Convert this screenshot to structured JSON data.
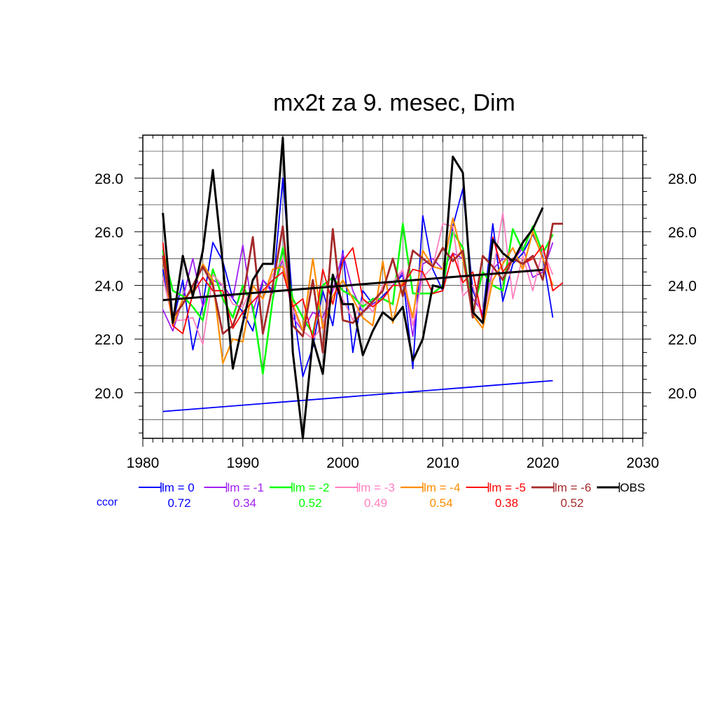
{
  "chart_data": {
    "type": "line",
    "title": "mx2t za 9. mesec, Dim",
    "xlabel": "",
    "ylabel": "",
    "xlim": [
      1980,
      2030
    ],
    "ylim": [
      18.3,
      29.6
    ],
    "x_ticks": [
      1980,
      1990,
      2000,
      2010,
      2020,
      2030
    ],
    "y_ticks": [
      "20.0",
      "22.0",
      "24.0",
      "26.0",
      "28.0"
    ],
    "grid": true,
    "legend_position": "bottom",
    "ccor_label": "ccor",
    "series": [
      {
        "name": "lm = 0",
        "color": "#0000ff",
        "ccor": "0.72",
        "width": 1.8,
        "x": [
          1982,
          1983,
          1984,
          1985,
          1986,
          1987,
          1988,
          1989,
          1990,
          1991,
          1992,
          1993,
          1994,
          1995,
          1996,
          1997,
          1998,
          1999,
          2000,
          2001,
          2002,
          2003,
          2004,
          2005,
          2006,
          2007,
          2008,
          2009,
          2010,
          2011,
          2012,
          2013,
          2014,
          2015,
          2016,
          2017,
          2018,
          2019,
          2020,
          2021
        ],
        "y": [
          24.6,
          22.6,
          24.2,
          21.6,
          23.3,
          25.6,
          24.9,
          23.5,
          23.0,
          22.3,
          24.2,
          23.8,
          28.0,
          23.3,
          20.6,
          21.7,
          23.8,
          22.5,
          25.3,
          21.5,
          23.8,
          23.3,
          23.6,
          24.0,
          24.4,
          20.9,
          26.6,
          24.6,
          23.8,
          26.2,
          27.6,
          23.8,
          22.9,
          26.3,
          23.4,
          24.8,
          25.2,
          25.9,
          25.1,
          22.8
        ]
      },
      {
        "name": "lm = -1",
        "color": "#a020f0",
        "ccor": "0.34",
        "width": 1.8,
        "x": [
          1982,
          1983,
          1984,
          1985,
          1986,
          1987,
          1988,
          1989,
          1990,
          1991,
          1992,
          1993,
          1994,
          1995,
          1996,
          1997,
          1998,
          1999,
          2000,
          2001,
          2002,
          2003,
          2004,
          2005,
          2006,
          2007,
          2008,
          2009,
          2010,
          2011,
          2012,
          2013,
          2014,
          2015,
          2016,
          2017,
          2018,
          2019,
          2020,
          2021
        ],
        "y": [
          23.1,
          22.3,
          23.5,
          25.0,
          23.2,
          24.2,
          24.0,
          23.5,
          25.5,
          23.0,
          24.2,
          23.7,
          25.0,
          22.8,
          22.3,
          23.0,
          22.8,
          23.8,
          25.2,
          23.8,
          23.0,
          23.3,
          23.5,
          24.0,
          24.5,
          22.1,
          24.8,
          25.0,
          24.6,
          25.2,
          25.0,
          23.5,
          23.0,
          24.6,
          25.0,
          24.9,
          25.4,
          24.3,
          24.5,
          25.6
        ]
      },
      {
        "name": "lm = -2",
        "color": "#00ff00",
        "ccor": "0.52",
        "width": 2.5,
        "x": [
          1982,
          1983,
          1984,
          1985,
          1986,
          1987,
          1988,
          1989,
          1990,
          1991,
          1992,
          1993,
          1994,
          1995,
          1996,
          1997,
          1998,
          1999,
          2000,
          2001,
          2002,
          2003,
          2004,
          2005,
          2006,
          2007,
          2008,
          2009,
          2010,
          2011,
          2012,
          2013,
          2014,
          2015,
          2016,
          2017,
          2018,
          2019,
          2020,
          2021
        ],
        "y": [
          25.3,
          23.8,
          23.6,
          23.2,
          22.7,
          24.6,
          23.5,
          22.8,
          24.0,
          23.2,
          20.7,
          23.5,
          25.4,
          23.5,
          22.8,
          22.2,
          24.0,
          24.3,
          23.8,
          23.6,
          23.2,
          23.5,
          23.5,
          23.3,
          26.3,
          23.7,
          23.7,
          23.7,
          24.0,
          26.0,
          25.4,
          23.0,
          24.5,
          24.0,
          23.8,
          26.1,
          25.3,
          26.2,
          25.2,
          25.9
        ]
      },
      {
        "name": "lm = -3",
        "color": "#ff7fbf",
        "ccor": "0.49",
        "width": 1.8,
        "x": [
          1982,
          1983,
          1984,
          1985,
          1986,
          1987,
          1988,
          1989,
          1990,
          1991,
          1992,
          1993,
          1994,
          1995,
          1996,
          1997,
          1998,
          1999,
          2000,
          2001,
          2002,
          2003,
          2004,
          2005,
          2006,
          2007,
          2008,
          2009,
          2010,
          2011,
          2012,
          2013,
          2014,
          2015,
          2016,
          2017,
          2018,
          2019,
          2020,
          2021
        ],
        "y": [
          24.3,
          22.7,
          22.7,
          22.8,
          21.8,
          24.4,
          24.0,
          23.3,
          23.2,
          24.0,
          23.5,
          24.4,
          25.0,
          23.1,
          22.3,
          22.0,
          22.5,
          24.0,
          23.5,
          22.7,
          23.5,
          23.0,
          24.0,
          24.1,
          24.6,
          22.5,
          24.3,
          24.7,
          26.3,
          26.2,
          23.6,
          24.0,
          22.7,
          24.5,
          26.7,
          23.5,
          25.1,
          23.8,
          25.3,
          24.4
        ]
      },
      {
        "name": "lm = -4",
        "color": "#ff8c00",
        "ccor": "0.54",
        "width": 2.2,
        "x": [
          1982,
          1983,
          1984,
          1985,
          1986,
          1987,
          1988,
          1989,
          1990,
          1991,
          1992,
          1993,
          1994,
          1995,
          1996,
          1997,
          1998,
          1999,
          2000,
          2001,
          2002,
          2003,
          2004,
          2005,
          2006,
          2007,
          2008,
          2009,
          2010,
          2011,
          2012,
          2013,
          2014,
          2015,
          2016,
          2017,
          2018,
          2019,
          2020,
          2021
        ],
        "y": [
          25.0,
          22.5,
          23.5,
          23.8,
          24.8,
          24.2,
          21.1,
          22.0,
          21.9,
          24.0,
          23.5,
          24.6,
          24.7,
          23.3,
          22.3,
          25.0,
          22.4,
          23.6,
          24.2,
          23.5,
          22.8,
          22.5,
          24.9,
          22.6,
          24.2,
          22.8,
          25.3,
          24.7,
          24.6,
          26.5,
          25.0,
          22.9,
          22.4,
          24.2,
          24.8,
          25.4,
          24.6,
          26.0,
          25.0,
          24.0
        ]
      },
      {
        "name": "lm = -5",
        "color": "#ff0000",
        "ccor": "0.38",
        "width": 1.8,
        "x": [
          1982,
          1983,
          1984,
          1985,
          1986,
          1987,
          1988,
          1989,
          1990,
          1991,
          1992,
          1993,
          1994,
          1995,
          1996,
          1997,
          1998,
          1999,
          2000,
          2001,
          2002,
          2003,
          2004,
          2005,
          2006,
          2007,
          2008,
          2009,
          2010,
          2011,
          2012,
          2013,
          2014,
          2015,
          2016,
          2017,
          2018,
          2019,
          2020,
          2021,
          2022
        ],
        "y": [
          25.6,
          22.5,
          22.2,
          23.7,
          24.3,
          23.8,
          23.8,
          22.4,
          23.0,
          23.4,
          23.8,
          24.2,
          24.5,
          23.2,
          23.5,
          22.0,
          24.6,
          23.3,
          24.9,
          25.4,
          23.5,
          23.2,
          23.5,
          24.0,
          24.0,
          24.6,
          24.5,
          23.7,
          23.8,
          25.2,
          24.1,
          24.5,
          22.7,
          25.8,
          24.5,
          25.0,
          24.8,
          25.0,
          25.5,
          23.8,
          24.1
        ]
      },
      {
        "name": "lm = -6",
        "color": "#a52a2a",
        "ccor": "0.52",
        "width": 2.8,
        "x": [
          1982,
          1983,
          1984,
          1985,
          1986,
          1987,
          1988,
          1989,
          1990,
          1991,
          1992,
          1993,
          1994,
          1995,
          1996,
          1997,
          1998,
          1999,
          2000,
          2001,
          2002,
          2003,
          2004,
          2005,
          2006,
          2007,
          2008,
          2009,
          2010,
          2011,
          2012,
          2013,
          2014,
          2015,
          2016,
          2017,
          2018,
          2019,
          2020,
          2021,
          2022
        ],
        "y": [
          25.1,
          22.8,
          23.3,
          24.0,
          24.7,
          24.0,
          22.2,
          22.5,
          23.5,
          25.8,
          22.2,
          24.0,
          26.2,
          22.5,
          22.1,
          24.2,
          21.5,
          26.1,
          22.7,
          22.6,
          23.0,
          23.4,
          23.8,
          25.0,
          23.6,
          25.3,
          25.0,
          24.7,
          25.4,
          24.9,
          25.3,
          22.8,
          25.1,
          24.7,
          24.2,
          25.0,
          24.8,
          25.1,
          24.2,
          26.3,
          26.3
        ]
      },
      {
        "name": "OBS",
        "color": "#000000",
        "ccor": "",
        "width": 3.0,
        "x": [
          1982,
          1983,
          1984,
          1985,
          1986,
          1987,
          1988,
          1989,
          1990,
          1991,
          1992,
          1993,
          1994,
          1995,
          1996,
          1997,
          1998,
          1999,
          2000,
          2001,
          2002,
          2003,
          2004,
          2005,
          2006,
          2007,
          2008,
          2009,
          2010,
          2011,
          2012,
          2013,
          2014,
          2015,
          2016,
          2017,
          2018,
          2019,
          2020
        ],
        "y": [
          26.7,
          22.6,
          25.1,
          23.6,
          25.3,
          28.3,
          24.8,
          20.9,
          22.6,
          24.2,
          24.8,
          24.8,
          29.5,
          21.5,
          18.3,
          22.0,
          20.7,
          24.4,
          23.3,
          23.3,
          21.4,
          22.3,
          23.0,
          22.7,
          23.2,
          21.2,
          22.0,
          24.0,
          23.9,
          28.8,
          28.2,
          23.0,
          22.6,
          25.7,
          25.2,
          24.9,
          25.6,
          26.1,
          26.9
        ]
      }
    ],
    "trend_lines": [
      {
        "series": "OBS",
        "color": "#000000",
        "width": 3.0,
        "x": [
          1982,
          2020
        ],
        "y": [
          23.45,
          24.58
        ]
      },
      {
        "series": "lm = 0",
        "color": "#0000ff",
        "width": 1.8,
        "x": [
          1982,
          2021
        ],
        "y": [
          19.3,
          20.45
        ]
      }
    ]
  }
}
